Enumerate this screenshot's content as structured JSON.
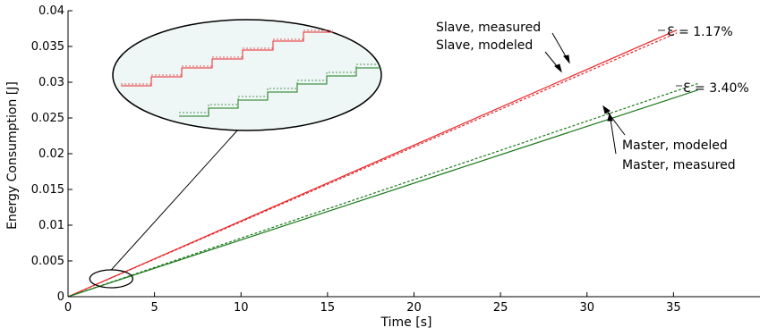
{
  "chart_data": {
    "type": "line",
    "xlabel": "Time [s]",
    "ylabel": "Energy Consumption [J]",
    "xlim": [
      0,
      40
    ],
    "ylim": [
      0,
      0.04
    ],
    "x_ticks": [
      "0",
      "5",
      "10",
      "15",
      "20",
      "25",
      "30",
      "35"
    ],
    "y_ticks": [
      "0",
      "0.005",
      "0.01",
      "0.015",
      "0.02",
      "0.025",
      "0.03",
      "0.035",
      "0.04"
    ],
    "grid": false,
    "series": [
      {
        "name": "Slave, measured",
        "color": "#e8262a",
        "style": "solid",
        "x": [
          0,
          35.2
        ],
        "y": [
          0,
          0.0373
        ]
      },
      {
        "name": "Slave, modeled",
        "color": "#e8262a",
        "style": "dashed",
        "x": [
          0,
          35.2
        ],
        "y": [
          0,
          0.0369
        ]
      },
      {
        "name": "Master, modeled",
        "color": "#1c7a1c",
        "style": "dashed",
        "x": [
          0,
          36.4
        ],
        "y": [
          0,
          0.0298
        ]
      },
      {
        "name": "Master, measured",
        "color": "#1c7a1c",
        "style": "solid",
        "x": [
          0,
          36.4
        ],
        "y": [
          0,
          0.0289
        ]
      }
    ],
    "annotations": {
      "slave_measured": "Slave, measured",
      "slave_modeled": "Slave, modeled",
      "master_modeled": "Master, modeled",
      "master_measured": "Master, measured",
      "slave_error": "Ɛ = 1.17%",
      "master_error": "Ɛ = 3.40%"
    },
    "zoom_inset": {
      "x_center": 2.5,
      "y_center": 0.0025
    }
  }
}
